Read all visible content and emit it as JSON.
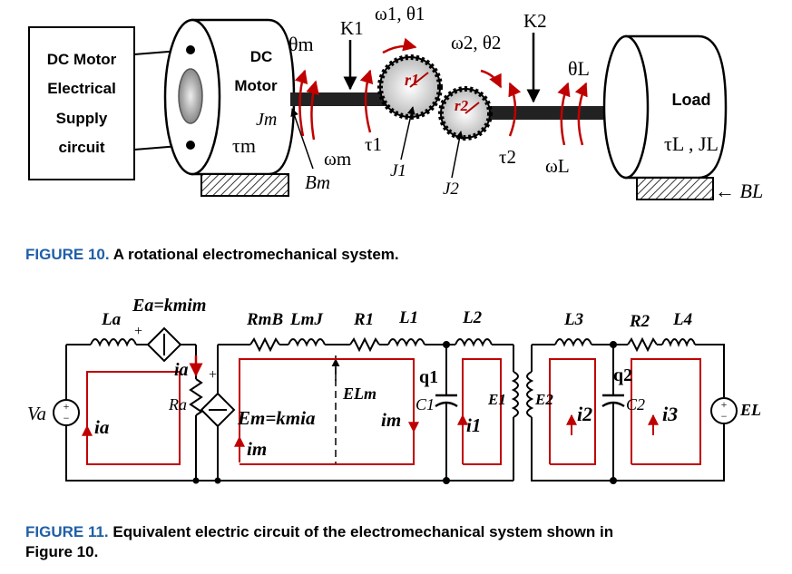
{
  "fig10": {
    "supply_lines": [
      "DC Motor",
      "Electrical",
      "Supply",
      "circuit"
    ],
    "motor_lines": [
      "DC",
      "Motor"
    ],
    "load_label": "Load",
    "tau_m": "τm",
    "J_m": "Jm",
    "theta_m": "θm",
    "omega_m": "ωm",
    "B_m": "Bm",
    "K1": "K1",
    "omega1_theta1": "ω1, θ1",
    "tau1": "τ1",
    "J1": "J1",
    "r1": "r1",
    "K2": "K2",
    "omega2_theta2": "ω2, θ2",
    "r2": "r2",
    "J2": "J2",
    "tau2": "τ2",
    "theta_L": "θL",
    "omega_L": "ωL",
    "tauL_JL": "τL , JL",
    "B_L": "← BL",
    "caption_label": "FIGURE 10.",
    "caption_text": "A rotational electromechanical system."
  },
  "fig11": {
    "La": "La",
    "Ea": "Ea=kmim",
    "plus_a": "+",
    "ia_src": "ia",
    "Ra": "Ra",
    "plus_m": "+",
    "Va": "Va",
    "ia_loop": "ia",
    "RmB": "RmB",
    "LmJ": "LmJ",
    "R1": "R1",
    "L1": "L1",
    "L2": "L2",
    "ELm": "ELm",
    "Em": "Em=kmia",
    "im_left": "im",
    "im_right": "im",
    "q1": "q1",
    "C1": "C1",
    "i1": "i1",
    "E1": "E1",
    "E2": "E2",
    "i2": "i2",
    "L3": "L3",
    "R2": "R2",
    "L4": "L4",
    "q2": "q2",
    "C2": "C2",
    "i3": "i3",
    "EL": "EL",
    "caption_label": "FIGURE 11.",
    "caption_text": "Equivalent electric circuit of the electromechanical system shown in",
    "caption_text2": "Figure 10."
  },
  "colors": {
    "accent_red": "#c00000",
    "caption_blue": "#1f5fa8",
    "gear_red": "#b00000"
  }
}
